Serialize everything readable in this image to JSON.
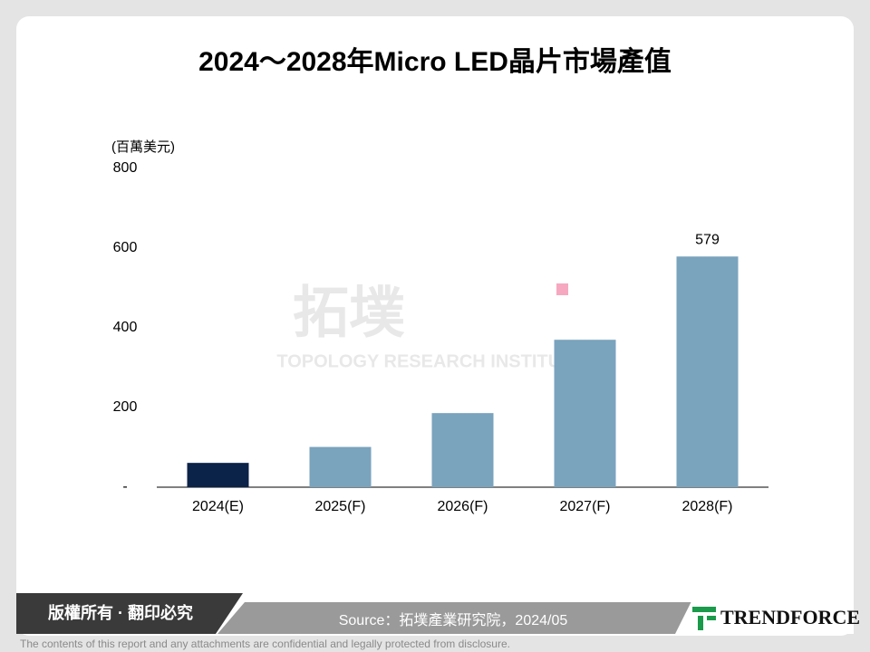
{
  "chart_data": {
    "type": "bar",
    "title": "2024～2028年Micro LED晶片市場產值",
    "y_label": "(百萬美元)",
    "categories": [
      "2024(E)",
      "2025(F)",
      "2026(F)",
      "2027(F)",
      "2028(F)"
    ],
    "values": [
      61,
      101,
      186,
      370,
      579
    ],
    "colors": [
      "#0b2249",
      "#7aa3bd",
      "#7aa3bd",
      "#7aa3bd",
      "#7aa3bd"
    ],
    "ylim": [
      0,
      800
    ],
    "yticks": [
      {
        "value": 0,
        "label": "-"
      },
      200,
      400,
      600,
      800
    ],
    "grid": false
  },
  "watermark": {
    "logo": "拓墣",
    "name": "TOPOLOGY RESEARCH INSTITUTE"
  },
  "footer": {
    "copyright": "版權所有 · 翻印必究",
    "source": "Source：拓墣產業研究院，2024/05",
    "brand": "TRENDFORCE",
    "disclaimer": "The contents of this report and any attachments are confidential and legally protected from disclosure."
  }
}
